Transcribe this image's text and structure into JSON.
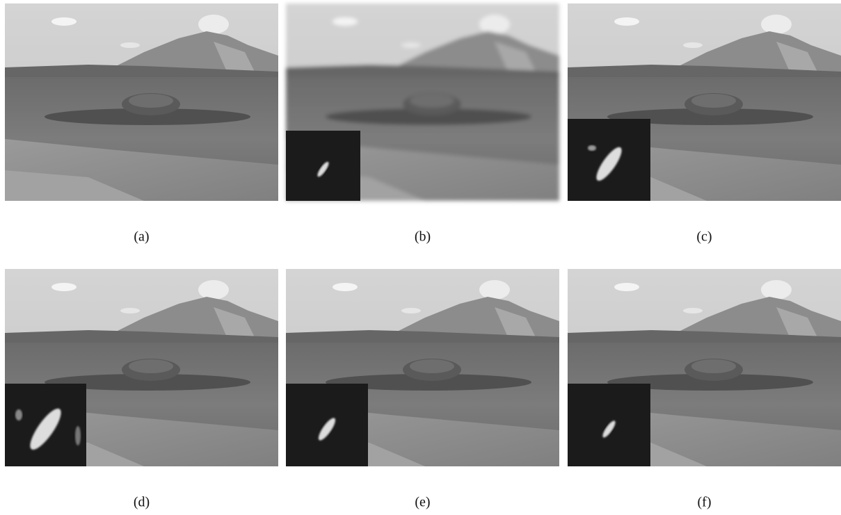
{
  "figure": {
    "panels": [
      {
        "label": "(a)"
      },
      {
        "label": "(b)"
      },
      {
        "label": "(c)"
      },
      {
        "label": "(d)"
      },
      {
        "label": "(e)"
      },
      {
        "label": "(f)"
      }
    ]
  }
}
